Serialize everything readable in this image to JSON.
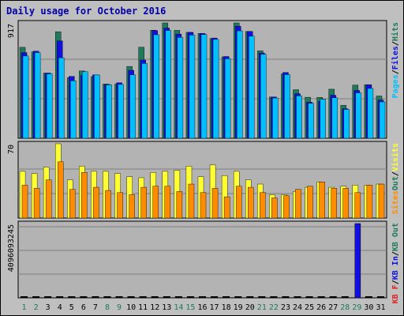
{
  "title": "Daily usage for October 2016",
  "colors": {
    "background": "#bfbfbf",
    "panel": "#b3b3b3",
    "hits": "#1e7a5a",
    "files": "#1010e0",
    "pages": "#00c0ff",
    "visits": "#ffff33",
    "sites": "#ff8c00",
    "kbf": "#e02020",
    "kbin": "#1010e0",
    "kbout": "#1e7a5a",
    "title": "#0000aa",
    "axis_label_green": "#1e7a5a"
  },
  "chart_data": [
    {
      "type": "bar",
      "panel": "top",
      "ymax_label": "917",
      "ylim": [
        0,
        917
      ],
      "legend": [
        {
          "text": "Pages",
          "color": "#00c0ff"
        },
        {
          "text": "/",
          "color": "#000000"
        },
        {
          "text": "Files",
          "color": "#1010e0"
        },
        {
          "text": "/",
          "color": "#000000"
        },
        {
          "text": "Hits",
          "color": "#1e7a5a"
        }
      ],
      "categories": [
        "1",
        "2",
        "3",
        "4",
        "5",
        "6",
        "7",
        "8",
        "9",
        "10",
        "11",
        "12",
        "13",
        "14",
        "15",
        "16",
        "17",
        "18",
        "19",
        "20",
        "21",
        "22",
        "23",
        "24",
        "25",
        "26",
        "27",
        "28",
        "29",
        "30",
        "31"
      ],
      "series": [
        {
          "name": "Hits",
          "values": [
            723,
            687,
            518,
            847,
            481,
            535,
            490,
            431,
            431,
            571,
            724,
            859,
            917,
            858,
            842,
            833,
            793,
            647,
            917,
            849,
            695,
            328,
            512,
            386,
            326,
            325,
            390,
            262,
            423,
            426,
            336
          ]
        },
        {
          "name": "Files",
          "values": [
            681,
            693,
            518,
            774,
            492,
            502,
            504,
            428,
            441,
            540,
            622,
            856,
            876,
            828,
            842,
            833,
            797,
            650,
            891,
            849,
            678,
            328,
            523,
            354,
            287,
            294,
            342,
            235,
            380,
            426,
            304
          ]
        },
        {
          "name": "Pages",
          "values": [
            654,
            681,
            512,
            640,
            457,
            529,
            503,
            425,
            428,
            504,
            594,
            823,
            857,
            802,
            820,
            825,
            786,
            632,
            854,
            812,
            668,
            320,
            506,
            338,
            278,
            310,
            322,
            229,
            361,
            396,
            289
          ]
        }
      ]
    },
    {
      "type": "bar",
      "panel": "middle",
      "ymax_label": "70",
      "ylim": [
        0,
        70
      ],
      "legend": [
        {
          "text": "Sites",
          "color": "#ff8c00"
        },
        {
          "text": "Out",
          "color": "#1e7a5a"
        },
        {
          "text": "/",
          "color": "#000000"
        },
        {
          "text": "Visits",
          "color": "#ffff33"
        }
      ],
      "series": [
        {
          "name": "Visits",
          "values": [
            44,
            42,
            48,
            70,
            36,
            49,
            44,
            44,
            42,
            39,
            38,
            43,
            44,
            45,
            49,
            39,
            50,
            40,
            44,
            36,
            32,
            22,
            22,
            25,
            29,
            34,
            29,
            30,
            31,
            31,
            32
          ]
        },
        {
          "name": "Sites",
          "values": [
            31,
            28,
            36,
            53,
            27,
            43,
            29,
            26,
            24,
            22,
            29,
            30,
            30,
            25,
            32,
            24,
            28,
            20,
            30,
            29,
            24,
            19,
            21,
            27,
            30,
            34,
            28,
            28,
            24,
            31,
            32
          ]
        }
      ]
    },
    {
      "type": "bar",
      "panel": "bottom",
      "ymax_label": "4096093245",
      "ylim": [
        0,
        4096093245
      ],
      "legend": [
        {
          "text": "KB F",
          "color": "#e02020"
        },
        {
          "text": "/",
          "color": "#000000"
        },
        {
          "text": "KB In",
          "color": "#1010e0"
        },
        {
          "text": "/",
          "color": "#000000"
        },
        {
          "text": "KB Out",
          "color": "#1e7a5a"
        }
      ],
      "series": [
        {
          "name": "KB F",
          "values": [
            0,
            0,
            0,
            0,
            0,
            0,
            0,
            0,
            0,
            0,
            0,
            0,
            0,
            0,
            0,
            0,
            0,
            0,
            0,
            0,
            0,
            0,
            0,
            0,
            0,
            0,
            0,
            0,
            4096093245,
            0,
            0
          ]
        }
      ]
    }
  ],
  "day_label_colors": [
    "g",
    "g",
    "k",
    "k",
    "k",
    "k",
    "k",
    "g",
    "g",
    "k",
    "k",
    "k",
    "k",
    "g",
    "g",
    "k",
    "k",
    "k",
    "k",
    "k",
    "g",
    "g",
    "k",
    "k",
    "k",
    "k",
    "k",
    "g",
    "g",
    "k",
    "k"
  ]
}
